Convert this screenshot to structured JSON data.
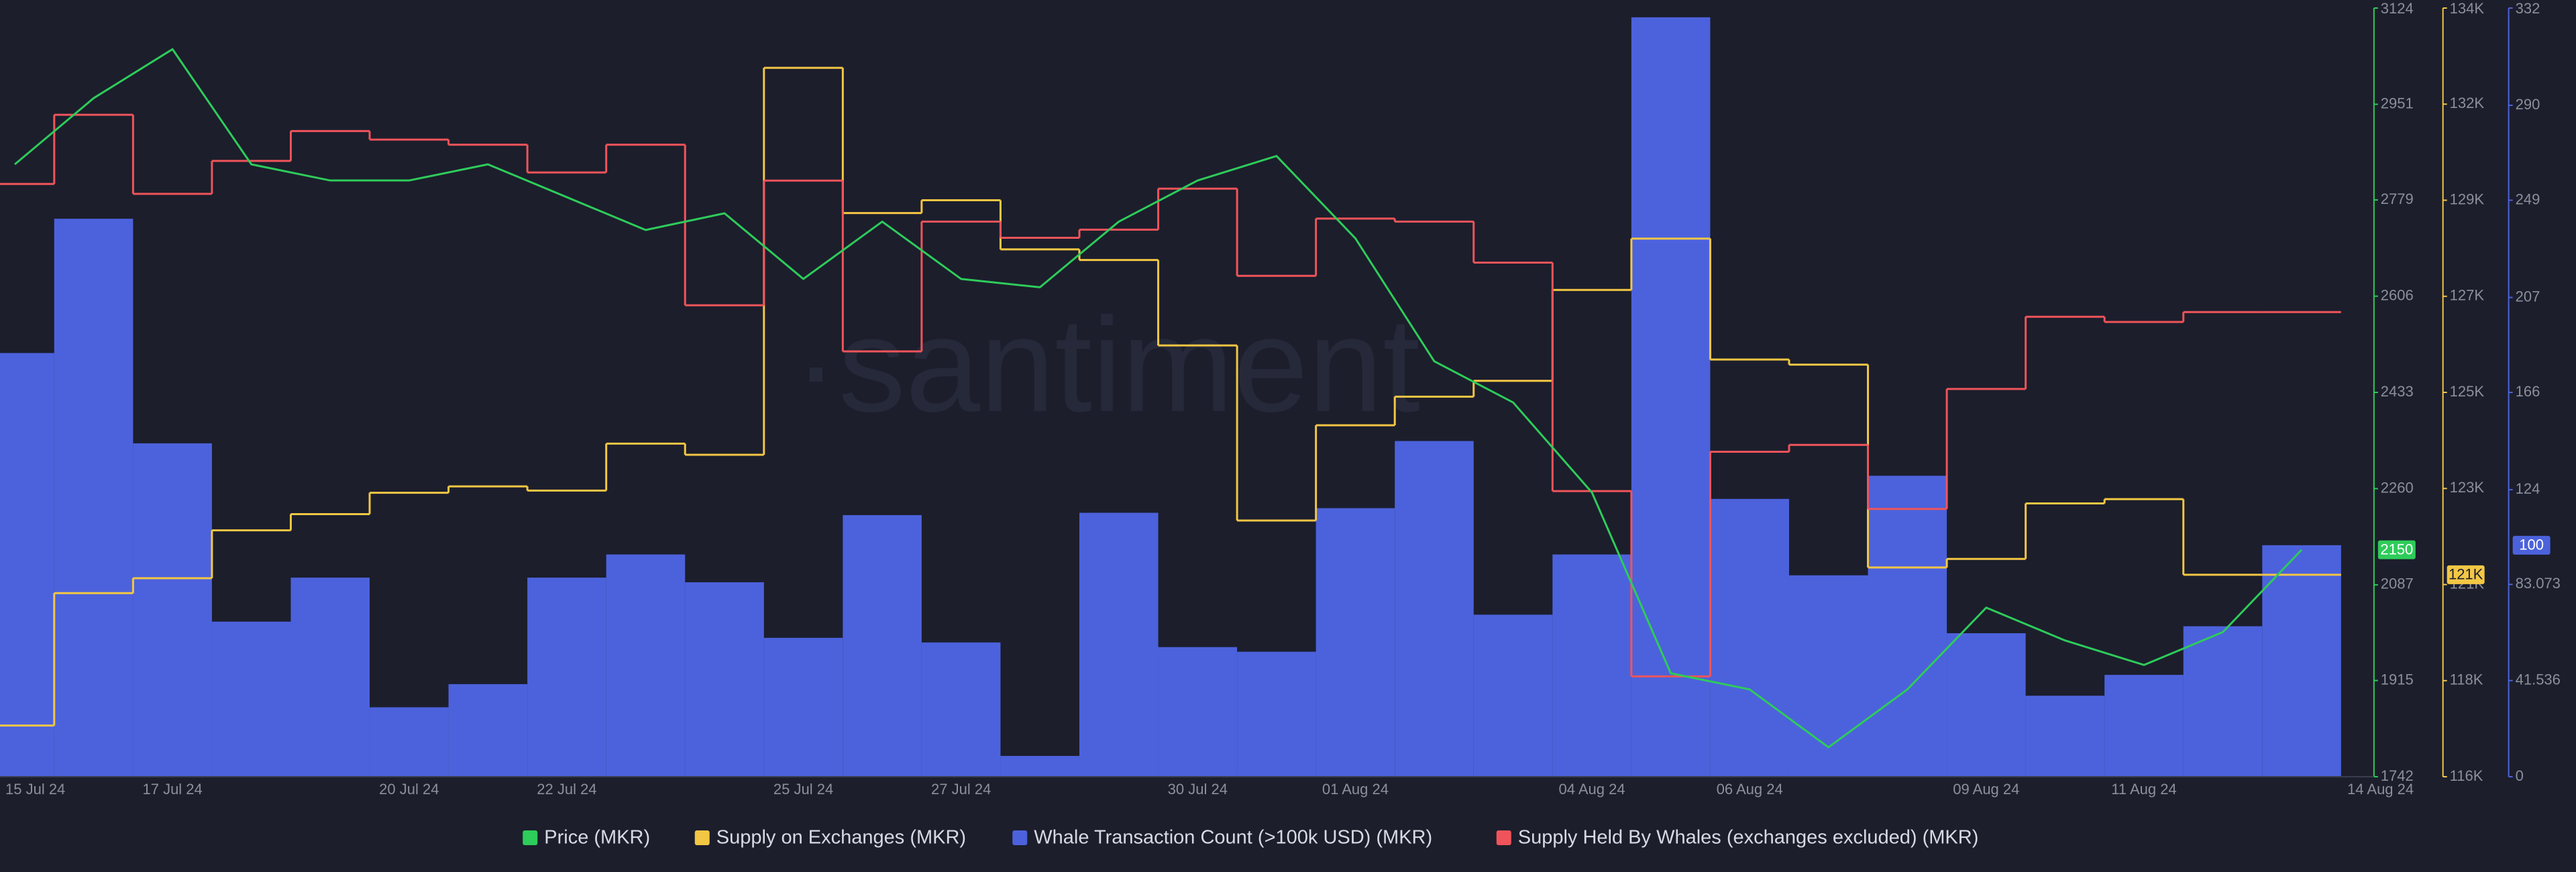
{
  "chart_data": {
    "type": "combo",
    "watermark": "·santiment",
    "categories": [
      "15 Jul 24",
      null,
      "17 Jul 24",
      null,
      null,
      "20 Jul 24",
      null,
      "22 Jul 24",
      null,
      null,
      "25 Jul 24",
      null,
      "27 Jul 24",
      null,
      null,
      "30 Jul 24",
      null,
      "01 Aug 24",
      null,
      null,
      "04 Aug 24",
      null,
      "06 Aug 24",
      null,
      null,
      "09 Aug 24",
      null,
      "11 Aug 24",
      null,
      null,
      "14 Aug 24"
    ],
    "ylim": [
      1742,
      3124
    ],
    "yticks": [
      1742,
      1915,
      2087,
      2260,
      2433,
      2606,
      2779,
      2951,
      3124
    ],
    "y2lim": [
      116000,
      134000
    ],
    "y2ticks": [
      {
        "value": 116000,
        "label": "116K"
      },
      {
        "value": 118250,
        "label": "118K"
      },
      {
        "value": 120500,
        "label": "121K"
      },
      {
        "value": 122750,
        "label": "123K"
      },
      {
        "value": 125000,
        "label": "125K"
      },
      {
        "value": 127250,
        "label": "127K"
      },
      {
        "value": 129500,
        "label": "129K"
      },
      {
        "value": 131750,
        "label": "132K"
      },
      {
        "value": 134000,
        "label": "134K"
      }
    ],
    "y3lim": [
      0,
      332
    ],
    "y3ticks": [
      0,
      41.536,
      83.073,
      124,
      166,
      207,
      249,
      290,
      332
    ],
    "series": [
      {
        "name": "Price (MKR)",
        "type": "line",
        "axis": "y",
        "color": "#2ecc5a",
        "badge": "2150",
        "values": [
          2843,
          2962,
          3050,
          2843,
          2814,
          2814,
          2843,
          2784,
          2725,
          2755,
          2637,
          2740,
          2637,
          2622,
          2740,
          2814,
          2858,
          2710,
          2489,
          2415,
          2253,
          1928,
          1899,
          1795,
          1899,
          2046,
          1987,
          1943,
          2002,
          2150,
          null
        ]
      },
      {
        "name": "Supply on Exchanges (MKR)",
        "type": "step",
        "axis": "y2",
        "color": "#f3c744",
        "badge": "121K",
        "values": [
          117200,
          120300,
          120650,
          121770,
          122150,
          122650,
          122800,
          122700,
          123800,
          123540,
          132600,
          129200,
          129500,
          128350,
          128100,
          126100,
          122000,
          124230,
          124900,
          125270,
          127400,
          128600,
          125770,
          125650,
          120900,
          121100,
          122400,
          122500,
          120730,
          120730,
          null
        ]
      },
      {
        "name": "Whale Transaction Count (>100k USD) (MKR)",
        "type": "bar",
        "axis": "y3",
        "color": "#4c62dc",
        "badge": "100",
        "values": [
          183,
          241,
          144,
          67,
          86,
          30,
          40,
          86,
          96,
          84,
          60,
          113,
          58,
          9,
          114,
          56,
          54,
          116,
          145,
          70,
          96,
          328,
          120,
          87,
          130,
          62,
          35,
          44,
          65,
          100,
          null
        ]
      },
      {
        "name": "Supply Held By Whales (exchanges excluded) (MKR)",
        "type": "step",
        "axis": "y2",
        "color": "#f0545a",
        "values": [
          129880,
          131500,
          129650,
          130420,
          131120,
          130920,
          130800,
          130150,
          130800,
          127040,
          129960,
          125960,
          129000,
          128620,
          128810,
          129770,
          127730,
          129070,
          129000,
          128040,
          122690,
          118350,
          123610,
          123770,
          122270,
          125080,
          126770,
          126650,
          126880,
          126880,
          null
        ]
      }
    ]
  }
}
